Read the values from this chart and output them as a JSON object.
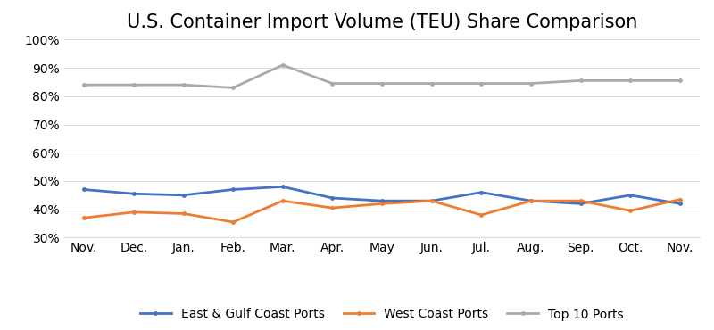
{
  "title": "U.S. Container Import Volume (TEU) Share Comparison",
  "months": [
    "Nov.",
    "Dec.",
    "Jan.",
    "Feb.",
    "Mar.",
    "Apr.",
    "May",
    "Jun.",
    "Jul.",
    "Aug.",
    "Sep.",
    "Oct.",
    "Nov."
  ],
  "east_gulf": [
    0.47,
    0.455,
    0.45,
    0.47,
    0.48,
    0.44,
    0.43,
    0.43,
    0.46,
    0.43,
    0.42,
    0.45,
    0.42
  ],
  "west_coast": [
    0.37,
    0.39,
    0.385,
    0.355,
    0.43,
    0.405,
    0.42,
    0.43,
    0.38,
    0.43,
    0.43,
    0.395,
    0.435
  ],
  "top10": [
    0.84,
    0.84,
    0.84,
    0.83,
    0.91,
    0.845,
    0.845,
    0.845,
    0.845,
    0.845,
    0.855,
    0.855,
    0.855
  ],
  "east_gulf_color": "#4472C4",
  "west_coast_color": "#ED7D31",
  "top10_color": "#AAAAAA",
  "east_gulf_label": "East & Gulf Coast Ports",
  "west_coast_label": "West Coast Ports",
  "top10_label": "Top 10 Ports",
  "ylim": [
    0.3,
    1.0
  ],
  "yticks": [
    0.3,
    0.4,
    0.5,
    0.6,
    0.7,
    0.8,
    0.9,
    1.0
  ],
  "background_color": "#ffffff",
  "title_fontsize": 15,
  "tick_fontsize": 10,
  "legend_fontsize": 10,
  "line_width": 2.0
}
